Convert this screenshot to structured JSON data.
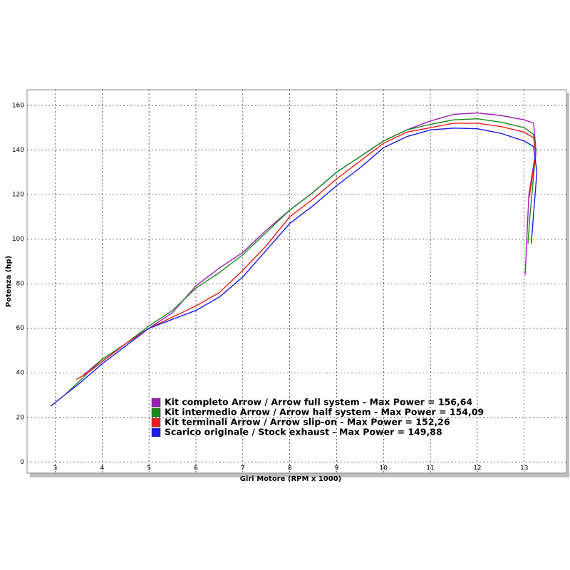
{
  "chart_data": {
    "type": "line",
    "x_label": "Giri Motore (RPM x 1000)",
    "y_label": "Potenza (hp)",
    "xlim": [
      2.4,
      13.9
    ],
    "ylim": [
      -5,
      167
    ],
    "xticks": [
      3,
      4,
      5,
      6,
      7,
      8,
      9,
      10,
      11,
      12,
      13
    ],
    "yticks": [
      0,
      20,
      40,
      60,
      80,
      100,
      120,
      140,
      160
    ],
    "grid": true,
    "series": [
      {
        "name": "Kit completo Arrow / Arrow full system - Max Power = 156,64",
        "color": "#9b1fb5",
        "x": [
          3.6,
          4.0,
          4.5,
          5.0,
          5.5,
          6.0,
          6.5,
          7.0,
          7.5,
          8.0,
          8.5,
          9.0,
          9.5,
          10.0,
          10.5,
          11.0,
          11.5,
          12.0,
          12.5,
          13.0,
          13.2,
          13.25,
          13.1,
          13.02
        ],
        "values": [
          39,
          46,
          53,
          60,
          67,
          79,
          87,
          94,
          104,
          113,
          121,
          130,
          137,
          144,
          149,
          153,
          156,
          156.6,
          155.5,
          153.5,
          152,
          140,
          120,
          84
        ]
      },
      {
        "name": "Kit intermedio Arrow / Arrow half system - Max Power = 154,09",
        "color": "#1a8a1a",
        "x": [
          3.2,
          3.6,
          4.0,
          4.5,
          5.0,
          5.5,
          6.0,
          6.5,
          7.0,
          7.5,
          8.0,
          8.5,
          9.0,
          9.5,
          10.0,
          10.5,
          11.0,
          11.5,
          12.0,
          12.5,
          13.0,
          13.2,
          13.25,
          13.12,
          13.08
        ],
        "values": [
          30,
          38,
          46,
          53,
          61,
          68,
          78,
          85,
          93,
          103,
          113,
          121,
          130,
          137,
          144,
          149,
          151.5,
          153.5,
          154,
          152.5,
          150,
          147,
          140,
          110,
          98
        ]
      },
      {
        "name": "Kit terminali Arrow / Arrow slip-on - Max Power = 152,26",
        "color": "#ee1c1c",
        "x": [
          3.45,
          3.7,
          4.0,
          4.5,
          5.0,
          5.5,
          6.0,
          6.5,
          7.0,
          7.5,
          8.0,
          8.5,
          9.0,
          9.5,
          10.0,
          10.5,
          11.0,
          11.5,
          12.0,
          12.5,
          13.0,
          13.2,
          13.25,
          13.1
        ],
        "values": [
          37,
          40,
          45,
          53,
          60,
          65,
          70,
          76,
          86,
          97,
          110,
          118,
          127,
          135,
          143,
          148,
          150,
          152,
          152,
          150.5,
          148,
          145.5,
          138,
          118
        ]
      },
      {
        "name": "Scarico originale / Stock exhaust - Max Power = 149,88",
        "color": "#1a1aee",
        "x": [
          2.9,
          3.2,
          3.5,
          4.0,
          4.5,
          5.0,
          5.5,
          6.0,
          6.5,
          7.0,
          7.5,
          8.0,
          8.5,
          9.0,
          9.5,
          10.0,
          10.5,
          11.0,
          11.5,
          12.0,
          12.5,
          13.0,
          13.2,
          13.27,
          13.15
        ],
        "values": [
          25,
          30,
          35,
          44,
          52,
          60,
          64,
          68,
          74,
          83,
          95,
          107,
          115,
          124,
          132,
          141,
          146,
          149,
          149.8,
          149.5,
          147.5,
          144,
          141.5,
          130,
          98
        ]
      }
    ]
  }
}
